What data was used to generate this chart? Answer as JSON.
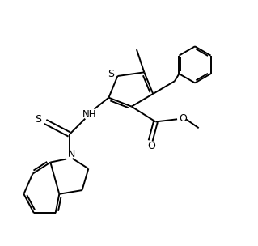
{
  "bg_color": "#ffffff",
  "line_color": "#000000",
  "lw": 1.4,
  "figsize": [
    3.19,
    3.04
  ],
  "dpi": 100,
  "xlim": [
    0,
    10
  ],
  "ylim": [
    0,
    9.5
  ]
}
